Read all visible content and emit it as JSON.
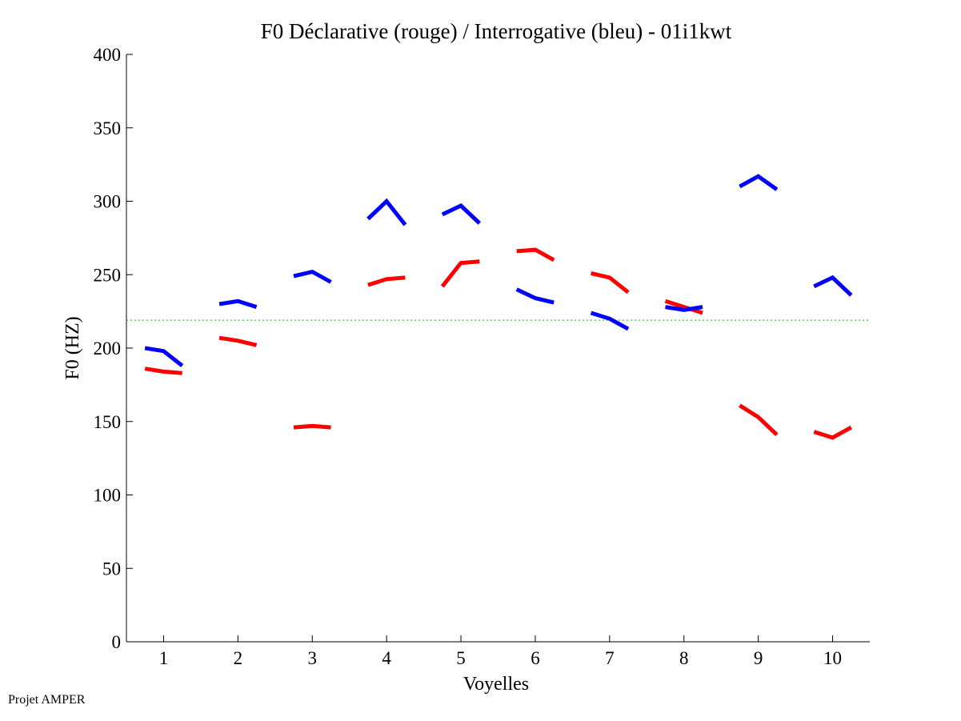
{
  "chart_data": {
    "type": "line",
    "title": "F0 Déclarative (rouge) / Interrogative (bleu) - 01i1kwt",
    "xlabel": "Voyelles",
    "ylabel": "F0 (HZ)",
    "xlim": [
      0.5,
      10.5
    ],
    "ylim": [
      0,
      400
    ],
    "xticks": [
      "1",
      "2",
      "3",
      "4",
      "5",
      "6",
      "7",
      "8",
      "9",
      "10"
    ],
    "yticks": [
      "0",
      "50",
      "100",
      "150",
      "200",
      "250",
      "300",
      "350",
      "400"
    ],
    "grid": false,
    "reference_line": {
      "y": 219,
      "color": "#33cc33",
      "style": "dotted"
    },
    "series": [
      {
        "name": "Déclarative (rouge)",
        "color": "#ff0000",
        "segments": [
          {
            "vowel": 1,
            "x": [
              0.75,
              1.0,
              1.25
            ],
            "y": [
              186,
              184,
              183
            ]
          },
          {
            "vowel": 2,
            "x": [
              1.75,
              2.0,
              2.25
            ],
            "y": [
              207,
              205,
              202
            ]
          },
          {
            "vowel": 3,
            "x": [
              2.75,
              3.0,
              3.25
            ],
            "y": [
              146,
              147,
              146
            ]
          },
          {
            "vowel": 4,
            "x": [
              3.75,
              4.0,
              4.25
            ],
            "y": [
              243,
              247,
              248
            ]
          },
          {
            "vowel": 5,
            "x": [
              4.75,
              5.0,
              5.25
            ],
            "y": [
              242,
              258,
              259
            ]
          },
          {
            "vowel": 6,
            "x": [
              5.75,
              6.0,
              6.25
            ],
            "y": [
              266,
              267,
              260
            ]
          },
          {
            "vowel": 7,
            "x": [
              6.75,
              7.0,
              7.25
            ],
            "y": [
              251,
              248,
              238
            ]
          },
          {
            "vowel": 8,
            "x": [
              7.75,
              8.0,
              8.25
            ],
            "y": [
              232,
              228,
              224
            ]
          },
          {
            "vowel": 9,
            "x": [
              8.75,
              9.0,
              9.25
            ],
            "y": [
              161,
              153,
              141
            ]
          },
          {
            "vowel": 10,
            "x": [
              9.75,
              10.0,
              10.25
            ],
            "y": [
              143,
              139,
              146
            ]
          }
        ]
      },
      {
        "name": "Interrogative (bleu)",
        "color": "#0000ff",
        "segments": [
          {
            "vowel": 1,
            "x": [
              0.75,
              1.0,
              1.25
            ],
            "y": [
              200,
              198,
              188
            ]
          },
          {
            "vowel": 2,
            "x": [
              1.75,
              2.0,
              2.25
            ],
            "y": [
              230,
              232,
              228
            ]
          },
          {
            "vowel": 3,
            "x": [
              2.75,
              3.0,
              3.25
            ],
            "y": [
              249,
              252,
              245
            ]
          },
          {
            "vowel": 4,
            "x": [
              3.75,
              4.0,
              4.25
            ],
            "y": [
              288,
              300,
              284
            ]
          },
          {
            "vowel": 5,
            "x": [
              4.75,
              5.0,
              5.25
            ],
            "y": [
              291,
              297,
              285
            ]
          },
          {
            "vowel": 6,
            "x": [
              5.75,
              6.0,
              6.25
            ],
            "y": [
              240,
              234,
              231
            ]
          },
          {
            "vowel": 7,
            "x": [
              6.75,
              7.0,
              7.25
            ],
            "y": [
              224,
              220,
              213
            ]
          },
          {
            "vowel": 8,
            "x": [
              7.75,
              8.0,
              8.25
            ],
            "y": [
              228,
              226,
              228
            ]
          },
          {
            "vowel": 9,
            "x": [
              8.75,
              9.0,
              9.25
            ],
            "y": [
              310,
              317,
              308
            ]
          },
          {
            "vowel": 10,
            "x": [
              9.75,
              10.0,
              10.25
            ],
            "y": [
              242,
              248,
              236
            ]
          }
        ]
      }
    ]
  },
  "footer": {
    "credit": "Projet AMPER"
  }
}
